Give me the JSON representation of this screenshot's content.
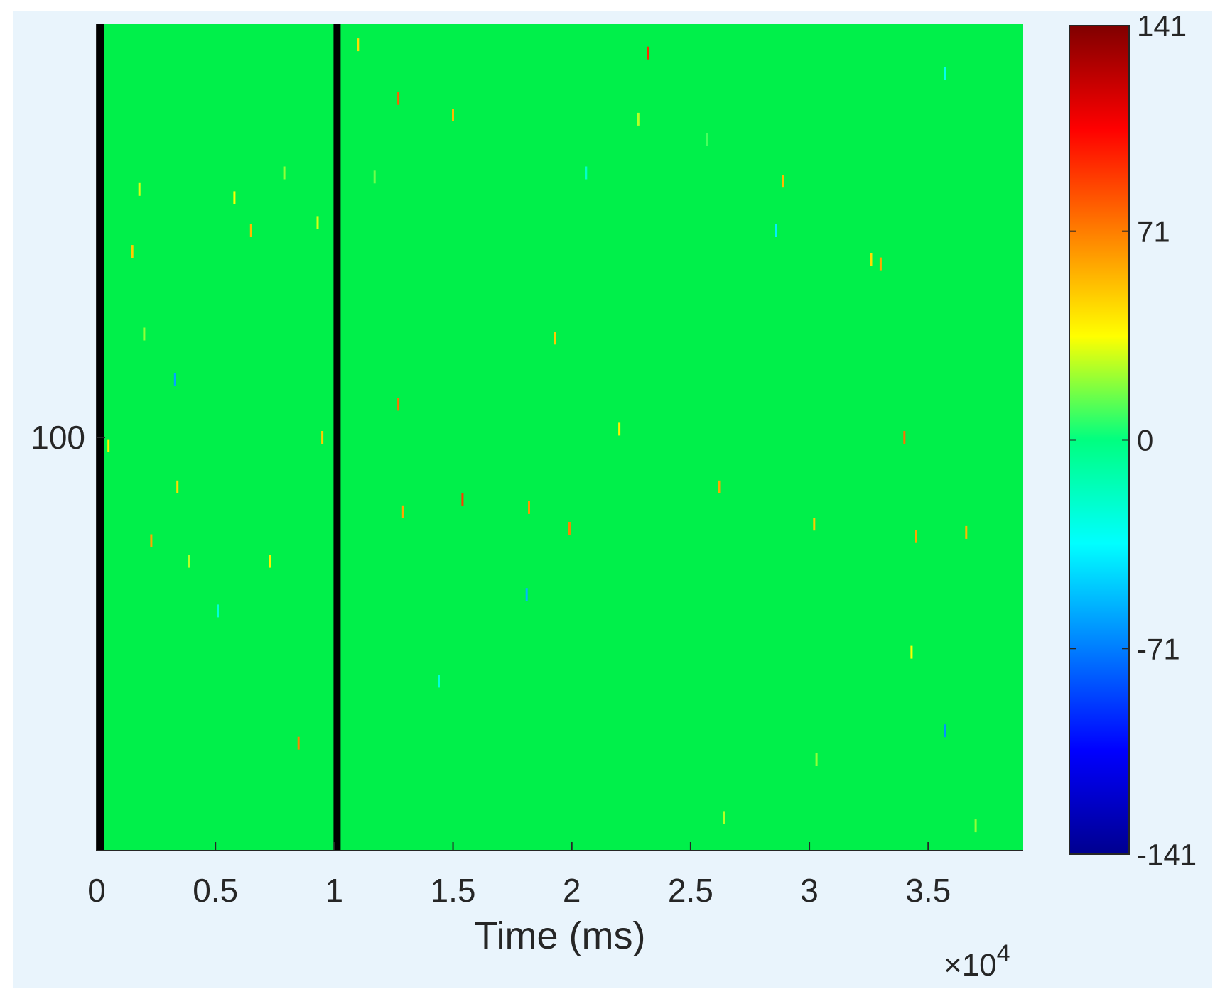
{
  "chart_data": {
    "type": "heatmap",
    "title": "",
    "xlabel": "Time (ms)",
    "x_exponent_label": "×10",
    "x_exponent_power": "4",
    "ylabel": "",
    "xlim": [
      0,
      39000
    ],
    "x_ticks": [
      0,
      0.5,
      1,
      1.5,
      2,
      2.5,
      3,
      3.5
    ],
    "x_tick_labels": [
      "0",
      "0.5",
      "1",
      "1.5",
      "2",
      "2.5",
      "3",
      "3.5"
    ],
    "y_ticks": [
      100
    ],
    "y_tick_labels": [
      "100"
    ],
    "ylim": [
      0,
      200
    ],
    "colormap": "jet",
    "clim": [
      -141,
      141
    ],
    "colorbar": {
      "ticks": [
        141,
        71,
        0,
        -71,
        -141
      ],
      "tick_labels": [
        "141",
        "71",
        "0",
        "-71",
        "-141"
      ],
      "placement": "right"
    },
    "background_value": 0,
    "highlight_lines": [
      {
        "x": 0,
        "color": "#000000"
      },
      {
        "x": 10000,
        "color": "#000000"
      }
    ],
    "events": [
      {
        "x": 500,
        "y": 98,
        "v": 40
      },
      {
        "x": 1500,
        "y": 145,
        "v": 50
      },
      {
        "x": 1800,
        "y": 160,
        "v": 30
      },
      {
        "x": 2000,
        "y": 125,
        "v": 20
      },
      {
        "x": 2300,
        "y": 75,
        "v": 60
      },
      {
        "x": 3400,
        "y": 88,
        "v": 45
      },
      {
        "x": 3900,
        "y": 70,
        "v": 25
      },
      {
        "x": 5800,
        "y": 158,
        "v": 35
      },
      {
        "x": 6500,
        "y": 150,
        "v": 55
      },
      {
        "x": 7300,
        "y": 70,
        "v": 40
      },
      {
        "x": 8500,
        "y": 26,
        "v": 70
      },
      {
        "x": 9300,
        "y": 152,
        "v": 30
      },
      {
        "x": 9500,
        "y": 100,
        "v": 50
      },
      {
        "x": 11000,
        "y": 195,
        "v": 45
      },
      {
        "x": 12700,
        "y": 182,
        "v": 80
      },
      {
        "x": 12700,
        "y": 108,
        "v": 75
      },
      {
        "x": 12900,
        "y": 82,
        "v": 60
      },
      {
        "x": 15400,
        "y": 85,
        "v": 90
      },
      {
        "x": 15000,
        "y": 178,
        "v": 55
      },
      {
        "x": 18200,
        "y": 83,
        "v": 65
      },
      {
        "x": 19300,
        "y": 124,
        "v": 50
      },
      {
        "x": 19900,
        "y": 78,
        "v": 70
      },
      {
        "x": 22000,
        "y": 102,
        "v": 40
      },
      {
        "x": 22800,
        "y": 177,
        "v": 25
      },
      {
        "x": 23200,
        "y": 193,
        "v": 95
      },
      {
        "x": 26200,
        "y": 88,
        "v": 60
      },
      {
        "x": 28900,
        "y": 162,
        "v": 55
      },
      {
        "x": 30200,
        "y": 79,
        "v": 50
      },
      {
        "x": 32600,
        "y": 143,
        "v": 45
      },
      {
        "x": 33000,
        "y": 142,
        "v": 60
      },
      {
        "x": 34000,
        "y": 100,
        "v": 75
      },
      {
        "x": 34500,
        "y": 76,
        "v": 60
      },
      {
        "x": 36600,
        "y": 77,
        "v": 55
      },
      {
        "x": 35700,
        "y": 188,
        "v": -30
      },
      {
        "x": 3300,
        "y": 114,
        "v": -60
      },
      {
        "x": 18100,
        "y": 62,
        "v": -55
      },
      {
        "x": 28600,
        "y": 150,
        "v": -40
      },
      {
        "x": 35700,
        "y": 29,
        "v": -65
      },
      {
        "x": 30300,
        "y": 22,
        "v": 20
      },
      {
        "x": 26400,
        "y": 8,
        "v": 25
      },
      {
        "x": 37000,
        "y": 6,
        "v": 20
      },
      {
        "x": 7900,
        "y": 164,
        "v": 20
      },
      {
        "x": 11700,
        "y": 163,
        "v": 15
      },
      {
        "x": 20600,
        "y": 164,
        "v": -20
      },
      {
        "x": 25700,
        "y": 172,
        "v": 10
      },
      {
        "x": 14400,
        "y": 41,
        "v": -25
      },
      {
        "x": 5100,
        "y": 58,
        "v": -25
      },
      {
        "x": 34300,
        "y": 48,
        "v": 35
      }
    ]
  }
}
